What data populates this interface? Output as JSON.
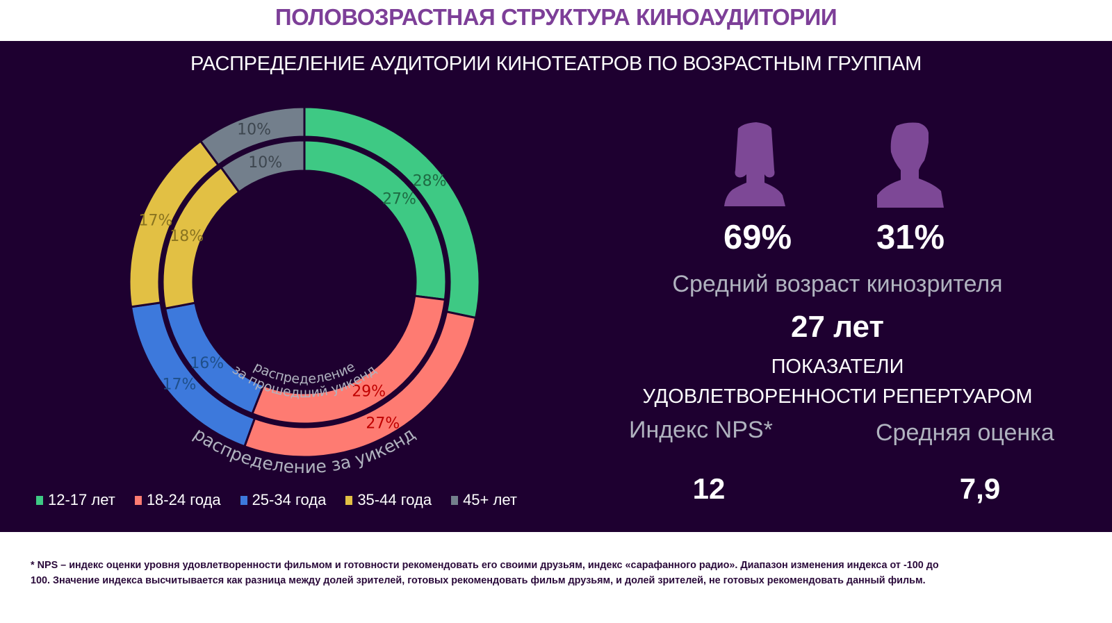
{
  "header": {
    "title": "ПОЛОВОЗРАСТНАЯ СТРУКТУРА КИНОАУДИТОРИИ"
  },
  "chart_data": {
    "type": "pie",
    "subtype": "double-donut",
    "title": "РАСПРЕДЕЛЕНИЕ АУДИТОРИИ КИНОТЕАТРОВ ПО ВОЗРАСТНЫМ ГРУППАМ",
    "categories": [
      "12-17 лет",
      "18-24 года",
      "25-34 года",
      "35-44 года",
      "45+ лет"
    ],
    "colors": [
      "#3ec984",
      "#fe7b72",
      "#3d79dc",
      "#e2c044",
      "#737f8c"
    ],
    "label_colors": [
      "#1e6b43",
      "#c00000",
      "#1f4f8a",
      "#8a7420",
      "#3d464f"
    ],
    "series": [
      {
        "name": "распределение за уикенд",
        "ring": "outer",
        "values": [
          28,
          27,
          17,
          17,
          10
        ],
        "labels": [
          "28%",
          "27%",
          "17%",
          "17%",
          "10%"
        ]
      },
      {
        "name": "распределение за прошедший уикенд",
        "ring": "inner",
        "values": [
          27,
          29,
          16,
          18,
          10
        ],
        "labels": [
          "27%",
          "29%",
          "16%",
          "18%",
          "10%"
        ]
      }
    ],
    "ring_labels": {
      "outer": "распределение за уикенд",
      "inner_line1": "распределение",
      "inner_line2": "за прошедший уикенд"
    },
    "legend_position": "bottom"
  },
  "gender": {
    "female": {
      "icon": "female-silhouette-icon",
      "value": "69%"
    },
    "male": {
      "icon": "male-silhouette-icon",
      "value": "31%"
    },
    "icon_color": "#7d4896"
  },
  "age": {
    "label": "Средний возраст кинозрителя",
    "value": "27 лет"
  },
  "satisfaction": {
    "title_line1": "ПОКАЗАТЕЛИ",
    "title_line2": "УДОВЛЕТВОРЕННОСТИ РЕПЕРТУАРОМ",
    "nps_label": "Индекс NPS*",
    "nps_value": "12",
    "rating_label": "Средняя оценка",
    "rating_value": "7,9"
  },
  "footnote": {
    "line1": "* NPS – индекс оценки уровня удовлетворенности фильмом и готовности рекомендовать его своими друзьям, индекс «сарафанного радио».  Диапазон изменения индекса от -100 до",
    "line2": "100. Значение индекса высчитывается как разница между долей зрителей, готовых рекомендовать фильм друзьям, и долей зрителей, не готовых рекомендовать данный фильм."
  }
}
